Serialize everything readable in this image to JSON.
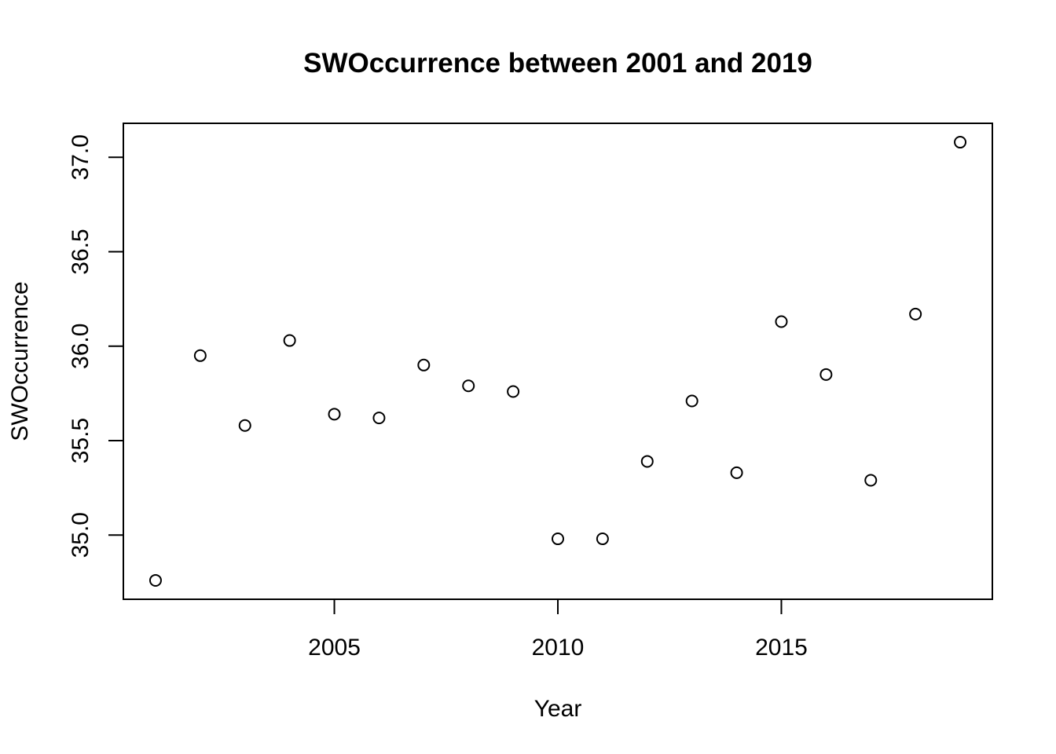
{
  "chart_data": {
    "type": "scatter",
    "title": "SWOccurrence between 2001 and 2019",
    "xlabel": "Year",
    "ylabel": "SWOccurrence",
    "xlim": [
      2000.28,
      2019.72
    ],
    "ylim": [
      34.66,
      37.18
    ],
    "x_ticks": [
      2005,
      2010,
      2015
    ],
    "x_tick_labels": [
      "2005",
      "2010",
      "2015"
    ],
    "y_ticks": [
      35.0,
      35.5,
      36.0,
      36.5,
      37.0
    ],
    "y_tick_labels": [
      "35.0",
      "35.5",
      "36.0",
      "36.5",
      "37.0"
    ],
    "grid": false,
    "points": [
      {
        "x": 2001,
        "y": 34.76
      },
      {
        "x": 2002,
        "y": 35.95
      },
      {
        "x": 2003,
        "y": 35.58
      },
      {
        "x": 2004,
        "y": 36.03
      },
      {
        "x": 2005,
        "y": 35.64
      },
      {
        "x": 2006,
        "y": 35.62
      },
      {
        "x": 2007,
        "y": 35.9
      },
      {
        "x": 2008,
        "y": 35.79
      },
      {
        "x": 2009,
        "y": 35.76
      },
      {
        "x": 2010,
        "y": 34.98
      },
      {
        "x": 2011,
        "y": 34.98
      },
      {
        "x": 2012,
        "y": 35.39
      },
      {
        "x": 2013,
        "y": 35.71
      },
      {
        "x": 2014,
        "y": 35.33
      },
      {
        "x": 2015,
        "y": 36.13
      },
      {
        "x": 2016,
        "y": 35.85
      },
      {
        "x": 2017,
        "y": 35.29
      },
      {
        "x": 2018,
        "y": 36.17
      },
      {
        "x": 2019,
        "y": 37.08
      }
    ]
  }
}
